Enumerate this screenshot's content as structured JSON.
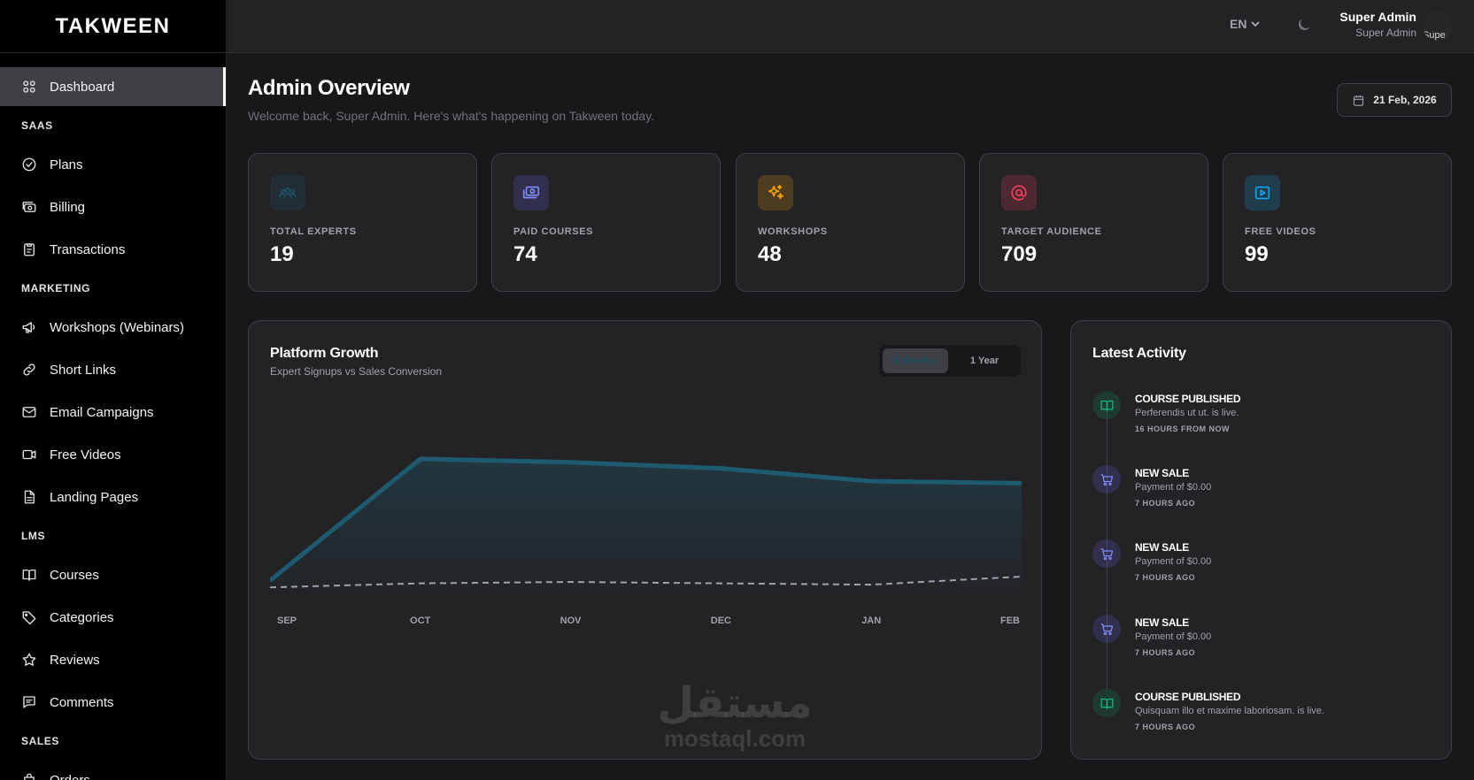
{
  "brand": "TAKWEEN",
  "sidebar": {
    "items": [
      {
        "label": "Dashboard"
      },
      {
        "label": "SAAS"
      },
      {
        "label": "Plans"
      },
      {
        "label": "Billing"
      },
      {
        "label": "Transactions"
      },
      {
        "label": "MARKETING"
      },
      {
        "label": "Workshops (Webinars)"
      },
      {
        "label": "Short Links"
      },
      {
        "label": "Email Campaigns"
      },
      {
        "label": "Free Videos"
      },
      {
        "label": "Landing Pages"
      },
      {
        "label": "LMS"
      },
      {
        "label": "Courses"
      },
      {
        "label": "Categories"
      },
      {
        "label": "Reviews"
      },
      {
        "label": "Comments"
      },
      {
        "label": "SALES"
      },
      {
        "label": "Orders"
      }
    ]
  },
  "topbar": {
    "language": "EN",
    "user_name": "Super Admin",
    "user_role": "Super Admin",
    "avatar_alt": "Supe"
  },
  "header": {
    "title": "Admin Overview",
    "subtitle": "Welcome back, Super Admin. Here's what's happening on Takween today.",
    "date": "21 Feb, 2026"
  },
  "stats": [
    {
      "label": "TOTAL EXPERTS",
      "value": "19",
      "icon": "users-icon",
      "color": "#1e4f63"
    },
    {
      "label": "PAID COURSES",
      "value": "74",
      "icon": "money-icon",
      "color": "#6366f1"
    },
    {
      "label": "WORKSHOPS",
      "value": "48",
      "icon": "sparkles-icon",
      "color": "#f59e0b"
    },
    {
      "label": "TARGET AUDIENCE",
      "value": "709",
      "icon": "at-sign-icon",
      "color": "#f43f5e"
    },
    {
      "label": "FREE VIDEOS",
      "value": "99",
      "icon": "play-icon",
      "color": "#0ea5e9"
    }
  ],
  "growth": {
    "title": "Platform Growth",
    "subtitle": "Expert Signups vs Sales Conversion",
    "range_options": [
      "6 Months",
      "1 Year"
    ],
    "selected_range": "6 Months"
  },
  "chart_data": {
    "type": "area",
    "categories": [
      "SEP",
      "OCT",
      "NOV",
      "DEC",
      "JAN",
      "FEB"
    ],
    "series": [
      {
        "values": [
          1,
          19,
          18.5,
          17.6,
          15.7,
          15.4
        ],
        "style": "solid-area",
        "color": "#1e5b70"
      },
      {
        "values": [
          0,
          0.6,
          0.8,
          0.6,
          0.4,
          1.6
        ],
        "style": "dashed",
        "color": "#9ca3af"
      }
    ],
    "ylim": [
      -0.5,
      25
    ],
    "grid": false
  },
  "activity": {
    "title": "Latest Activity",
    "items": [
      {
        "title": "COURSE PUBLISHED",
        "desc": "Perferendis ut ut. is live.",
        "time": "16 HOURS FROM NOW",
        "icon": "book-icon",
        "color": "#10b981"
      },
      {
        "title": "NEW SALE",
        "desc": "Payment of $0.00",
        "time": "7 HOURS AGO",
        "icon": "cart-icon",
        "color": "#6366f1"
      },
      {
        "title": "NEW SALE",
        "desc": "Payment of $0.00",
        "time": "7 HOURS AGO",
        "icon": "cart-icon",
        "color": "#6366f1"
      },
      {
        "title": "NEW SALE",
        "desc": "Payment of $0.00",
        "time": "7 HOURS AGO",
        "icon": "cart-icon",
        "color": "#6366f1"
      },
      {
        "title": "COURSE PUBLISHED",
        "desc": "Quisquam illo et maxime laboriosam. is live.",
        "time": "7 HOURS AGO",
        "icon": "book-icon",
        "color": "#10b981"
      }
    ]
  },
  "watermark": {
    "arabic": "مستقل",
    "latin": "mostaql.com"
  }
}
